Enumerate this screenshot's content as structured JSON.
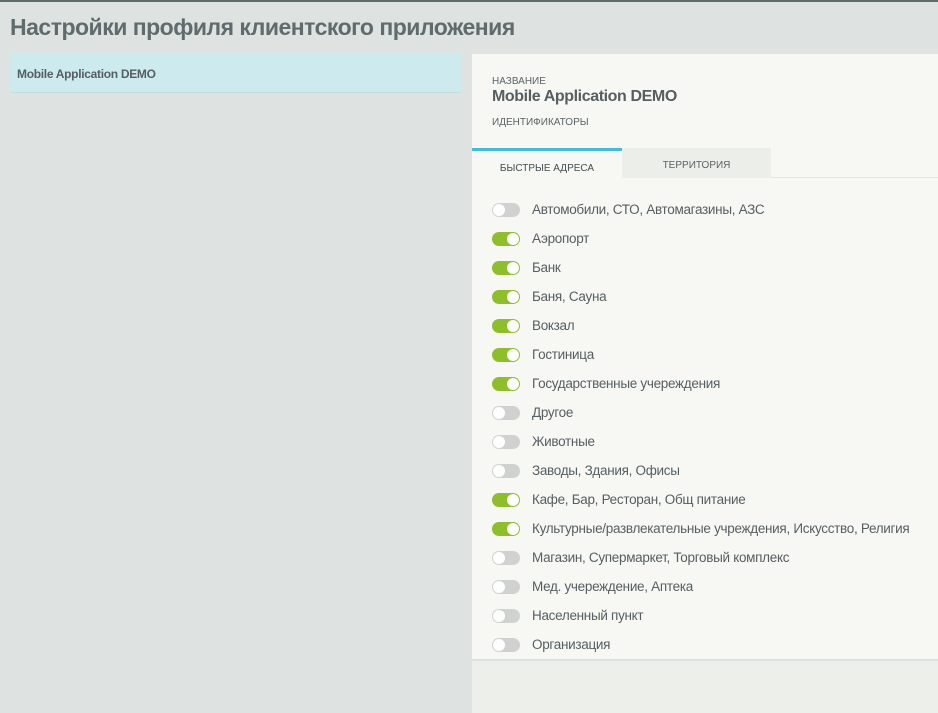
{
  "page": {
    "title": "Настройки профиля клиентского приложения"
  },
  "sidebar": {
    "items": [
      {
        "label": "Mobile Application DEMO",
        "selected": true
      }
    ]
  },
  "detail": {
    "name_label": "НАЗВАНИЕ",
    "name_value": "Mobile Application DEMO",
    "ids_label": "ИДЕНТИФИКАТОРЫ",
    "tabs": [
      {
        "label": "БЫСТРЫЕ АДРЕСА",
        "active": true
      },
      {
        "label": "ТЕРРИТОРИЯ",
        "active": false
      }
    ],
    "accent_color": "#3bbfe0",
    "toggle_on_color": "#8dbf2b",
    "items": [
      {
        "label": "Автомобили, СТО, Автомагазины, АЗС",
        "enabled": false
      },
      {
        "label": "Аэропорт",
        "enabled": true
      },
      {
        "label": "Банк",
        "enabled": true
      },
      {
        "label": "Баня, Сауна",
        "enabled": true
      },
      {
        "label": "Вокзал",
        "enabled": true
      },
      {
        "label": "Гостиница",
        "enabled": true
      },
      {
        "label": "Государственные учереждения",
        "enabled": true
      },
      {
        "label": "Другое",
        "enabled": false
      },
      {
        "label": "Животные",
        "enabled": false
      },
      {
        "label": "Заводы, Здания, Офисы",
        "enabled": false
      },
      {
        "label": "Кафе, Бар, Ресторан, Общ питание",
        "enabled": true
      },
      {
        "label": "Культурные/развлекательные учреждения, Искусство, Религия",
        "enabled": true
      },
      {
        "label": "Магазин, Супермаркет, Торговый комплекс",
        "enabled": false
      },
      {
        "label": "Мед. учереждение, Аптека",
        "enabled": false
      },
      {
        "label": "Населенный пункт",
        "enabled": false
      },
      {
        "label": "Организация",
        "enabled": false
      }
    ]
  }
}
